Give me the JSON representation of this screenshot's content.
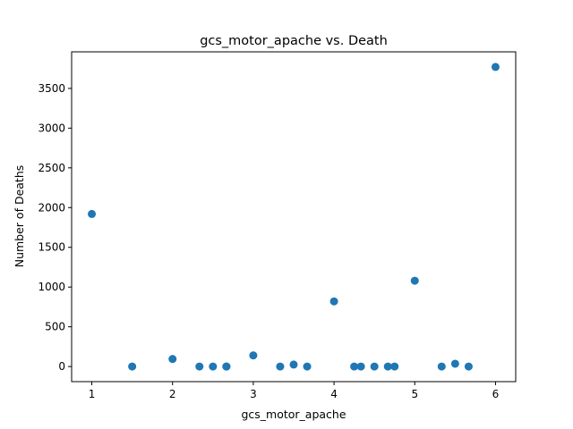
{
  "chart_data": {
    "type": "scatter",
    "title": "gcs_motor_apache vs. Death",
    "xlabel": "gcs_motor_apache",
    "ylabel": "Number of Deaths",
    "xlim": [
      0.75,
      6.25
    ],
    "ylim": [
      -190,
      3960
    ],
    "xticks": [
      1,
      2,
      3,
      4,
      5,
      6
    ],
    "yticks": [
      0,
      500,
      1000,
      1500,
      2000,
      2500,
      3000,
      3500
    ],
    "grid": false,
    "legend": "none",
    "marker_color": "#1f77b4",
    "x": [
      1.0,
      1.5,
      2.0,
      2.333,
      2.5,
      2.667,
      2.667,
      3.0,
      3.333,
      3.5,
      3.667,
      4.0,
      4.25,
      4.333,
      4.5,
      4.667,
      4.75,
      5.0,
      5.333,
      5.5,
      5.667,
      6.0
    ],
    "y": [
      1920,
      0,
      95,
      0,
      0,
      0,
      0,
      140,
      0,
      25,
      0,
      820,
      0,
      0,
      0,
      0,
      0,
      1080,
      0,
      35,
      0,
      3770
    ]
  }
}
